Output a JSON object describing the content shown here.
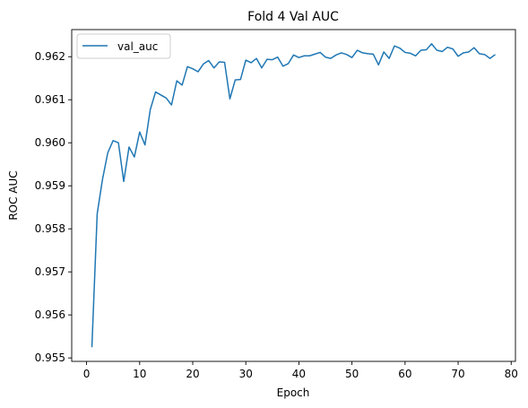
{
  "chart_data": {
    "type": "line",
    "title": "Fold 4 Val AUC",
    "xlabel": "Epoch",
    "ylabel": "ROC AUC",
    "xlim": [
      -2.8,
      80.8
    ],
    "ylim": [
      0.95492,
      0.96263
    ],
    "xticks": [
      0,
      10,
      20,
      30,
      40,
      50,
      60,
      70,
      80
    ],
    "yticks": [
      0.955,
      0.956,
      0.957,
      0.958,
      0.959,
      0.96,
      0.961,
      0.962
    ],
    "legend_position": "upper-left",
    "grid": false,
    "series": [
      {
        "name": "val_auc",
        "color": "#1f77b4",
        "x": [
          1,
          2,
          3,
          4,
          5,
          6,
          7,
          8,
          9,
          10,
          11,
          12,
          13,
          14,
          15,
          16,
          17,
          18,
          19,
          20,
          21,
          22,
          23,
          24,
          25,
          26,
          27,
          28,
          29,
          30,
          31,
          32,
          33,
          34,
          35,
          36,
          37,
          38,
          39,
          40,
          41,
          42,
          43,
          44,
          45,
          46,
          47,
          48,
          49,
          50,
          51,
          52,
          53,
          54,
          55,
          56,
          57,
          58,
          59,
          60,
          61,
          62,
          63,
          64,
          65,
          66,
          67,
          68,
          69,
          70,
          71,
          72,
          73,
          74,
          75,
          76,
          77
        ],
        "values": [
          0.95525,
          0.95835,
          0.95915,
          0.95977,
          0.96005,
          0.96,
          0.9591,
          0.9599,
          0.95967,
          0.96025,
          0.95995,
          0.96077,
          0.96118,
          0.96111,
          0.96104,
          0.96088,
          0.96144,
          0.96134,
          0.96177,
          0.96172,
          0.96165,
          0.96183,
          0.96191,
          0.96174,
          0.96188,
          0.96187,
          0.96102,
          0.96146,
          0.96147,
          0.96192,
          0.96186,
          0.96196,
          0.96174,
          0.96194,
          0.96193,
          0.96199,
          0.96178,
          0.96184,
          0.96204,
          0.96198,
          0.96202,
          0.96202,
          0.96206,
          0.9621,
          0.96199,
          0.96196,
          0.96204,
          0.96209,
          0.96205,
          0.96198,
          0.96215,
          0.96209,
          0.96207,
          0.96206,
          0.96181,
          0.96211,
          0.96196,
          0.96225,
          0.9622,
          0.9621,
          0.96208,
          0.96202,
          0.96215,
          0.96216,
          0.9623,
          0.96215,
          0.96212,
          0.96222,
          0.96218,
          0.96201,
          0.96209,
          0.96211,
          0.96221,
          0.96207,
          0.96205,
          0.96196,
          0.96205
        ]
      }
    ]
  }
}
